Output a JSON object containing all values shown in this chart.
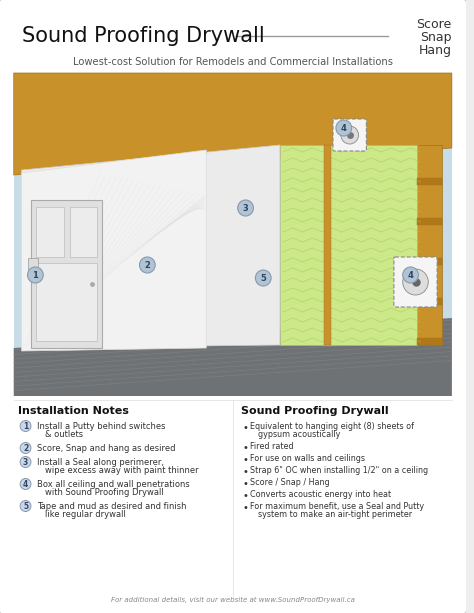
{
  "title": "Sound Proofing Drywall",
  "top_right_lines": [
    "Score",
    "Snap",
    "Hang"
  ],
  "subtitle": "Lowest-cost Solution for Remodels and Commercial Installations",
  "bg_color": "#eeeeee",
  "card_color": "#ffffff",
  "installation_notes_title": "Installation Notes",
  "installation_notes": [
    [
      "Install a Putty behind switches",
      "& outlets"
    ],
    [
      "Score, Snap and hang as desired"
    ],
    [
      "Install a Seal along perimerer,",
      "wipe excess away with paint thinner"
    ],
    [
      "Box all ceiling and wall penetrations",
      "with Sound Proofing Drywall"
    ],
    [
      "Tape and mud as desired and finish",
      "like regular drywall"
    ]
  ],
  "spd_title": "Sound Proofing Drywall",
  "spd_bullets": [
    [
      "Equivalent to hanging eight (8) sheets of",
      "gypsum acoustically"
    ],
    [
      "Fired rated"
    ],
    [
      "For use on walls and ceilings"
    ],
    [
      "Strap 6\" OC when installing 1/2\" on a ceiling"
    ],
    [
      "Score / Snap / Hang"
    ],
    [
      "Converts acoustic energy into heat"
    ],
    [
      "For maximum benefit, use a Seal and Putty",
      "system to make an air-tight perimeter"
    ]
  ],
  "footer": "For additional details, visit our website at www.SoundProofDrywall.ca",
  "wood_color": "#c8912a",
  "wood_dark": "#a07020",
  "insulation_color": "#cce888",
  "floor_color": "#7a7a7a",
  "drywall_color": "#f2f2f2",
  "bg_diagram": "#c8dce8",
  "label_bg": "#4a6fa8",
  "number_bg": "#b8c8d8",
  "number_border": "#8899aa"
}
